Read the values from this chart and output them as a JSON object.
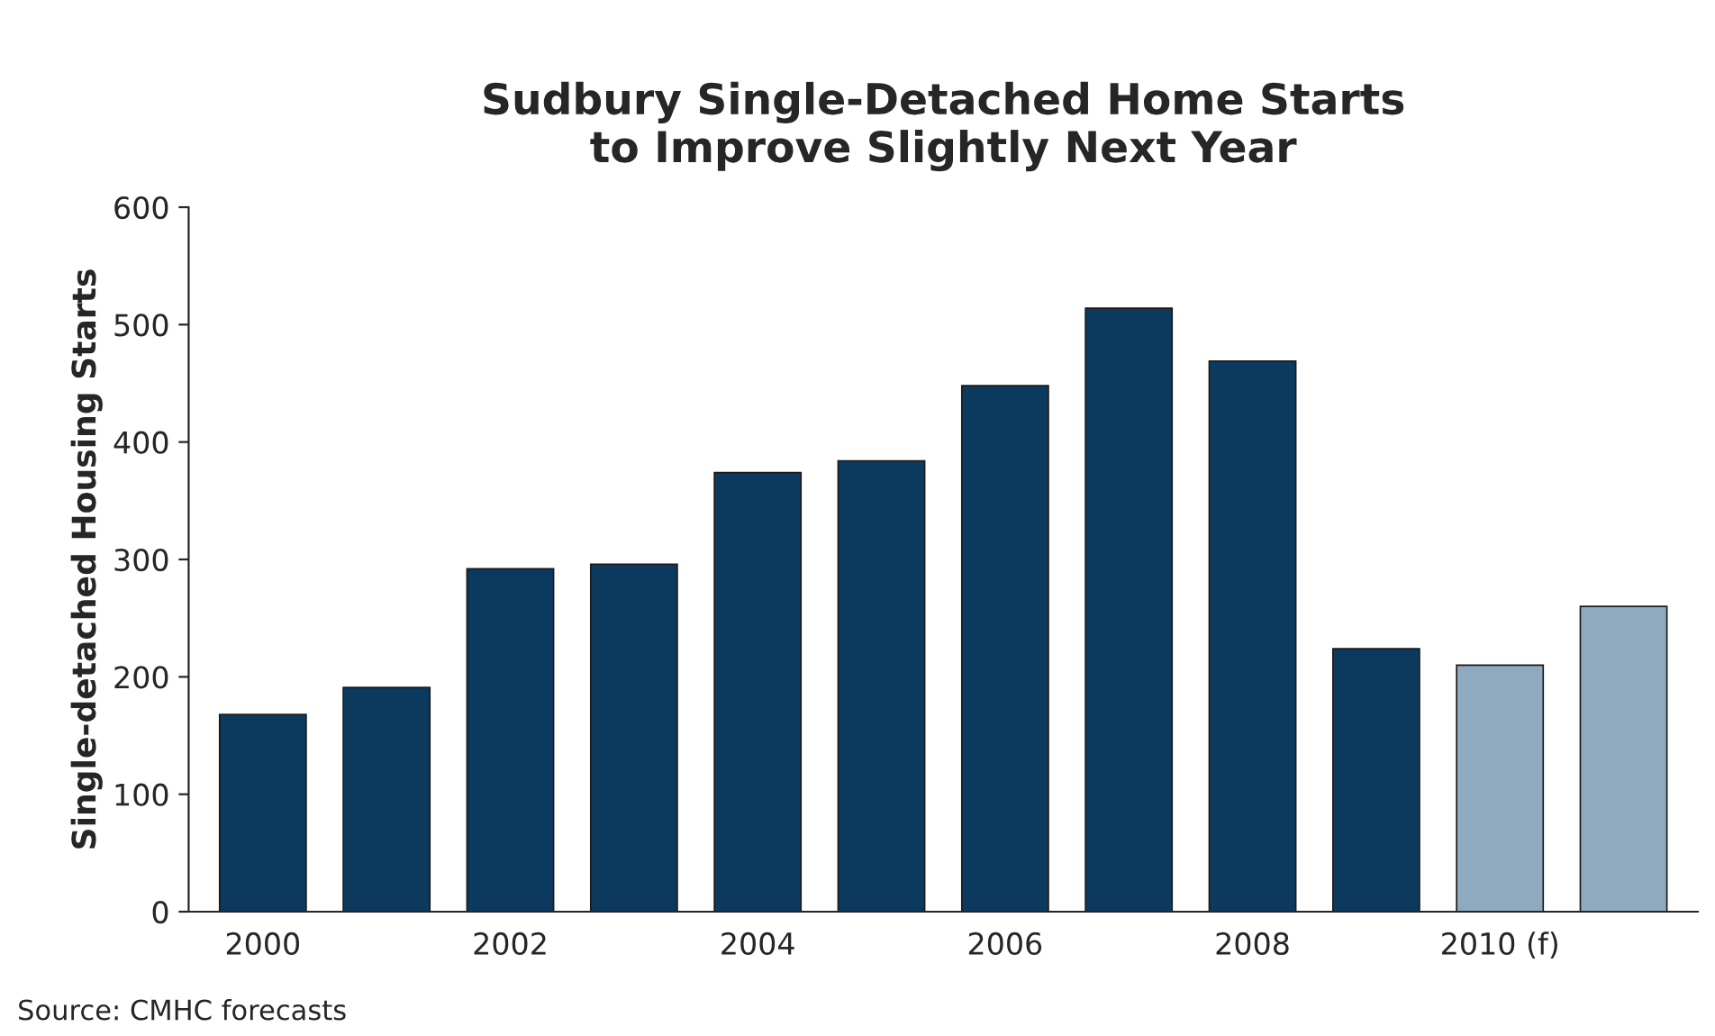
{
  "chart_data": {
    "type": "bar",
    "title": "Sudbury Single-Detached Home Starts\nto Improve Slightly Next Year",
    "ylabel": "Single-detached Housing Starts",
    "categories": [
      "2000",
      null,
      "2002",
      null,
      "2004",
      null,
      "2006",
      null,
      "2008",
      null,
      "2010 (f)",
      null
    ],
    "values": [
      168,
      191,
      292,
      296,
      374,
      384,
      448,
      514,
      469,
      224,
      210,
      260
    ],
    "colors": [
      "#0b3a5e",
      "#0b3a5e",
      "#0b3a5e",
      "#0b3a5e",
      "#0b3a5e",
      "#0b3a5e",
      "#0b3a5e",
      "#0b3a5e",
      "#0b3a5e",
      "#0b3a5e",
      "#8faabf",
      "#8faabf"
    ],
    "ylim": [
      0,
      600
    ],
    "yticks": [
      0,
      100,
      200,
      300,
      400,
      500,
      600
    ],
    "grid": false,
    "legend": false,
    "annotations": [
      "Source: CMHC forecasts"
    ]
  }
}
